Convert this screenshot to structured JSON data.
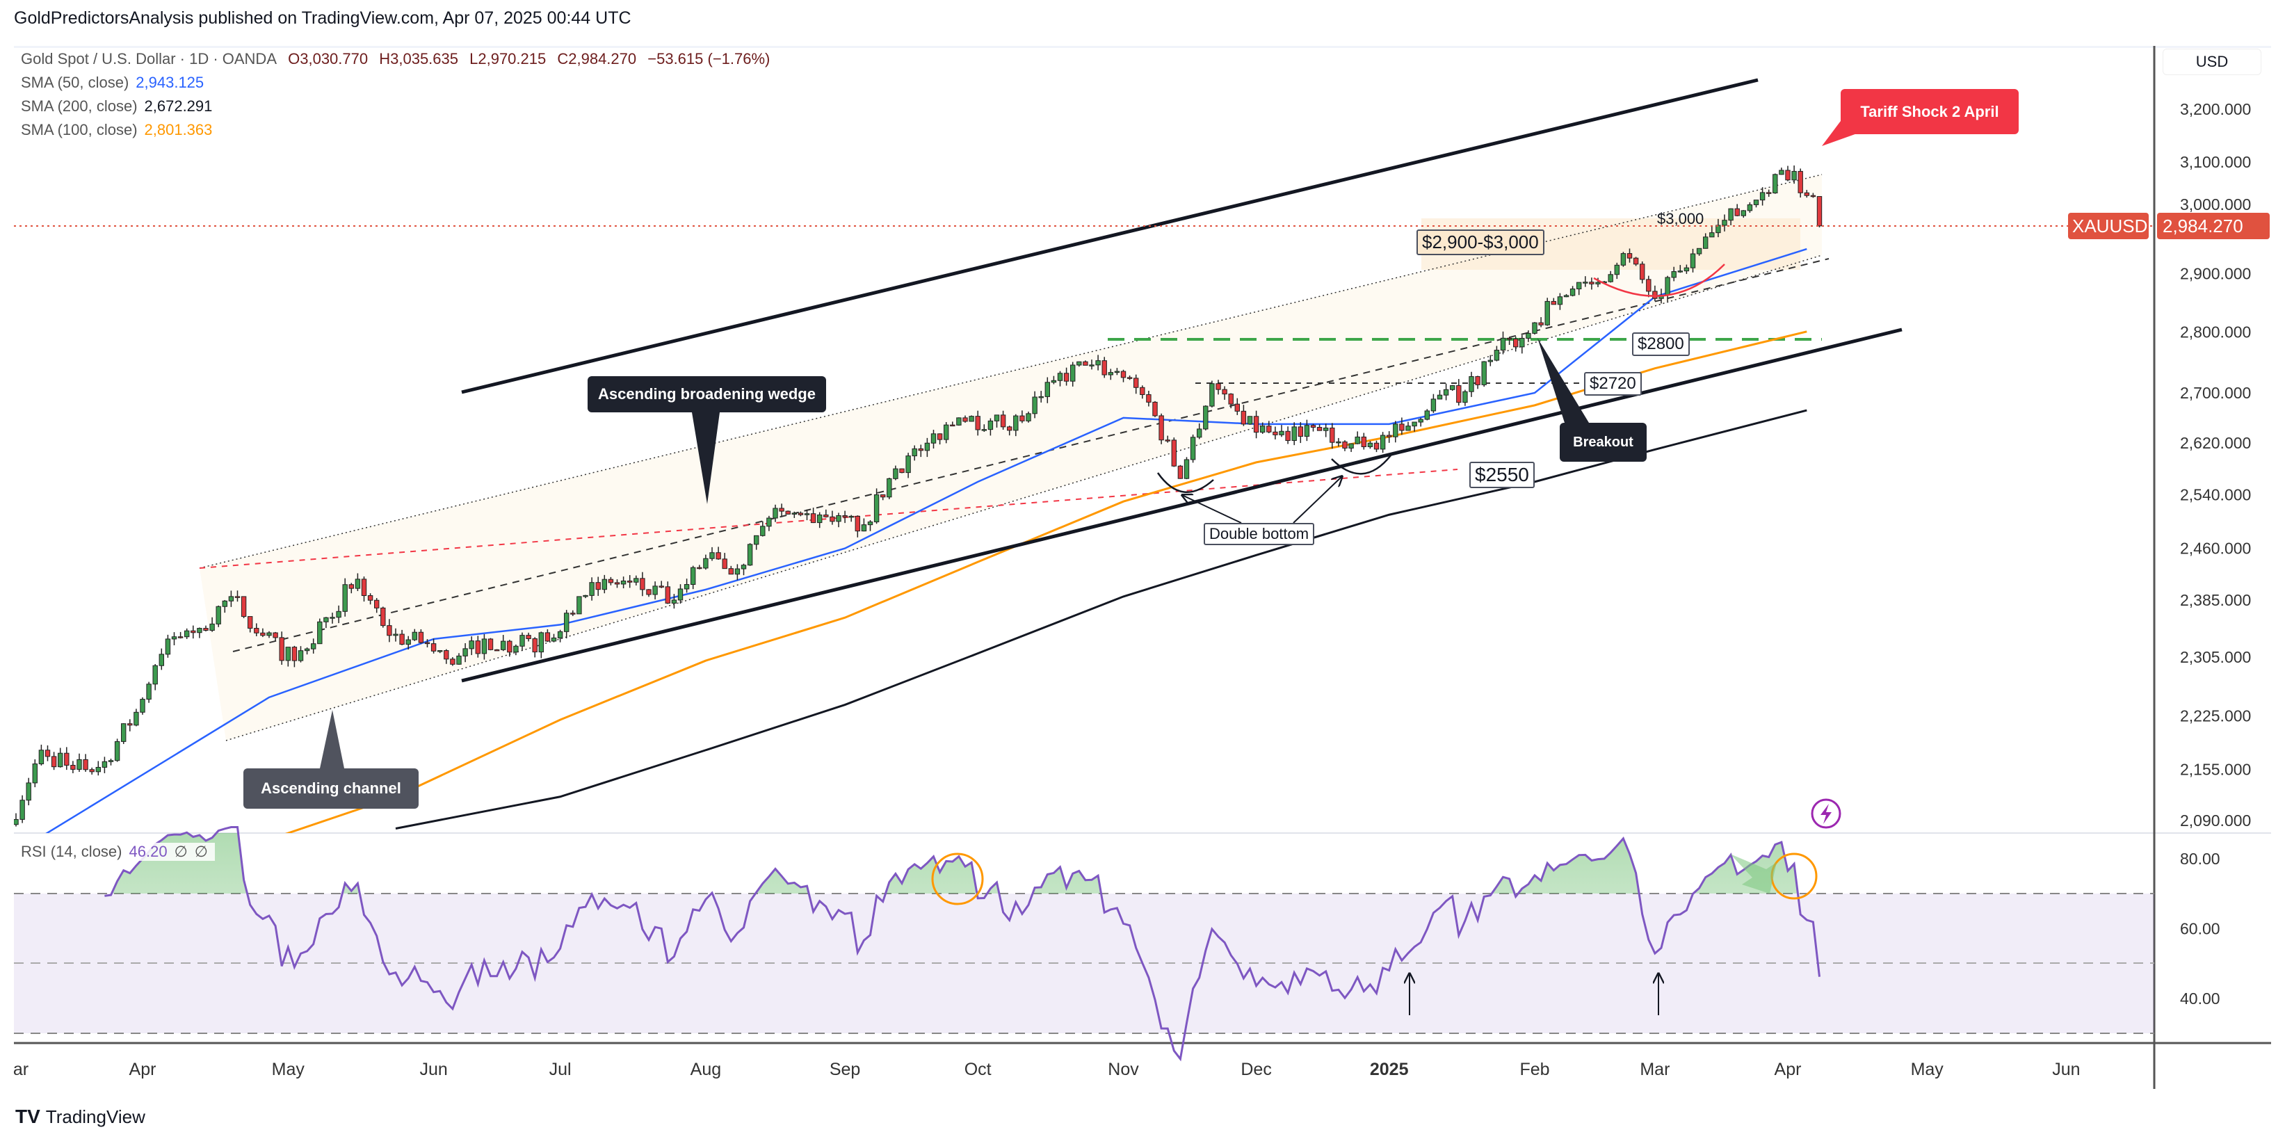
{
  "header": {
    "publish_line": "GoldPredictorsAnalysis published on TradingView.com, Apr 07, 2025 00:44 UTC"
  },
  "legend": {
    "symbol": "Gold Spot / U.S. Dollar · 1D · OANDA",
    "open": "O3,030.770",
    "high": "H3,035.635",
    "low": "L2,970.215",
    "close": "C2,984.270",
    "change": "−53.615 (−1.76%)",
    "sma50_label": "SMA (50, close)",
    "sma50_value": "2,943.125",
    "sma200_label": "SMA (200, close)",
    "sma200_value": "2,672.291",
    "sma100_label": "SMA (100, close)",
    "sma100_value": "2,801.363",
    "rsi_label": "RSI (14, close)",
    "rsi_value": "46.20",
    "rsi_extra1": "∅",
    "rsi_extra2": "∅"
  },
  "price_axis": {
    "currency": "USD",
    "symbol_tag": "XAUUSD",
    "last_price": "2,984.270"
  },
  "annotations": {
    "wedge": "Ascending broadening wedge",
    "channel": "Ascending channel",
    "tariff": "Tariff Shock 2 April",
    "breakout": "Breakout",
    "double_bottom": "Double bottom",
    "zone": "$2,900-$3,000",
    "l3000": "$3,000",
    "l2800": "$2800",
    "l2720": "$2720",
    "l2550": "$2550"
  },
  "brand": {
    "name": "TradingView"
  },
  "colors": {
    "up": "#3d9a4f",
    "down": "#e03a3e",
    "sma50": "#2962ff",
    "sma100": "#ff9800",
    "sma200": "#131722",
    "rsi": "#7e57c2",
    "last": "#e0523f",
    "tariff": "#f23645"
  },
  "chart_data": {
    "type": "candlestick",
    "title": "Gold Spot / U.S. Dollar · 1D · OANDA",
    "ylabel": "USD",
    "ylim": [
      2090,
      3200
    ],
    "scale": "log",
    "y_ticks": [
      "3,200.000",
      "3,100.000",
      "3,000.000",
      "2,900.000",
      "2,800.000",
      "2,700.000",
      "2,620.000",
      "2,540.000",
      "2,460.000",
      "2,385.000",
      "2,305.000",
      "2,225.000",
      "2,155.000",
      "2,090.000"
    ],
    "y_tick_values": [
      3200,
      3100,
      3000,
      2900,
      2800,
      2700,
      2620,
      2540,
      2460,
      2385,
      2305,
      2225,
      2155,
      2090
    ],
    "x_ticks": [
      "ar",
      "Apr",
      "May",
      "Jun",
      "Jul",
      "Aug",
      "Sep",
      "Oct",
      "Nov",
      "Dec",
      "2025",
      "Feb",
      "Mar",
      "Apr",
      "May",
      "Jun"
    ],
    "x_tick_bar_index": [
      -2,
      20,
      43,
      66,
      86,
      109,
      131,
      152,
      175,
      196,
      217,
      240,
      259,
      280,
      302,
      324
    ],
    "weekly_closes_start": "2024-03-01",
    "weekly_closes": [
      2085,
      2180,
      2155,
      2165,
      2230,
      2330,
      2345,
      2390,
      2335,
      2300,
      2360,
      2415,
      2335,
      2325,
      2295,
      2330,
      2320,
      2327,
      2390,
      2410,
      2400,
      2385,
      2445,
      2430,
      2505,
      2510,
      2500,
      2495,
      2580,
      2620,
      2660,
      2655,
      2655,
      2720,
      2745,
      2735,
      2685,
      2565,
      2715,
      2650,
      2633,
      2648,
      2622,
      2620,
      2640,
      2690,
      2702,
      2770,
      2798,
      2860,
      2882,
      2935,
      2857,
      2910,
      2985,
      3022,
      3085,
      3037,
      2984
    ],
    "sma50": [
      [
        4,
        2070
      ],
      [
        40,
        2250
      ],
      [
        66,
        2330
      ],
      [
        86,
        2350
      ],
      [
        109,
        2400
      ],
      [
        131,
        2460
      ],
      [
        152,
        2560
      ],
      [
        175,
        2660
      ],
      [
        196,
        2650
      ],
      [
        217,
        2650
      ],
      [
        240,
        2700
      ],
      [
        259,
        2860
      ],
      [
        283,
        2943
      ]
    ],
    "sma100": [
      [
        30,
        2040
      ],
      [
        60,
        2120
      ],
      [
        86,
        2220
      ],
      [
        109,
        2300
      ],
      [
        131,
        2360
      ],
      [
        152,
        2440
      ],
      [
        175,
        2530
      ],
      [
        196,
        2590
      ],
      [
        217,
        2630
      ],
      [
        240,
        2680
      ],
      [
        259,
        2740
      ],
      [
        283,
        2801
      ]
    ],
    "sma200": [
      [
        60,
        2080
      ],
      [
        86,
        2120
      ],
      [
        109,
        2180
      ],
      [
        131,
        2240
      ],
      [
        152,
        2310
      ],
      [
        175,
        2390
      ],
      [
        196,
        2450
      ],
      [
        217,
        2510
      ],
      [
        240,
        2560
      ],
      [
        259,
        2610
      ],
      [
        283,
        2672
      ]
    ],
    "rsi": {
      "period": 14,
      "levels": [
        70,
        50,
        30
      ],
      "y_ticks": [
        "80.00",
        "60.00",
        "40.00"
      ],
      "y_tick_values": [
        80,
        60,
        40
      ],
      "last": 46.2
    },
    "last_price": 2984.27
  }
}
